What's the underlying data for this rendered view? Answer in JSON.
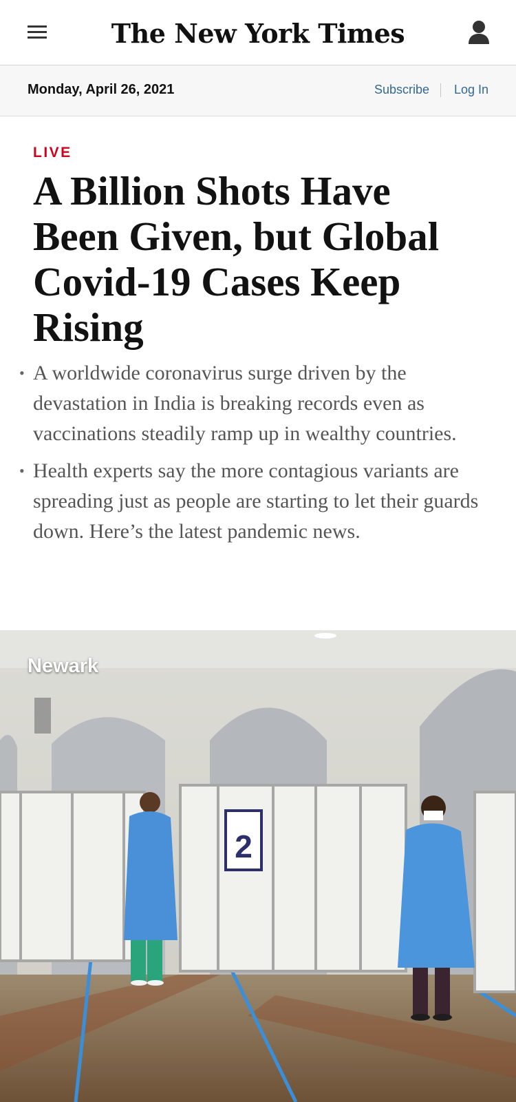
{
  "header": {
    "logo_text": "The New York Times",
    "menu_icon": "hamburger-menu-icon",
    "account_icon": "user-account-icon"
  },
  "datebar": {
    "date": "Monday, April 26, 2021",
    "subscribe_label": "Subscribe",
    "login_label": "Log In",
    "link_color": "#326891"
  },
  "article": {
    "live_label": "LIVE",
    "live_color": "#d0021b",
    "headline": "A Billion Shots Have Been Given, but Global Covid-19 Cases Keep Rising",
    "summary": [
      "A worldwide coronavirus surge driven by the devastation in India is breaking records even as vaccinations steadily ramp up in wealthy countries.",
      "Health experts say the more contagious variants are spreading just as people are starting to let their guards down. Here’s the latest pandemic news."
    ]
  },
  "photo": {
    "location_label": "Newark",
    "booth_number": "2"
  }
}
